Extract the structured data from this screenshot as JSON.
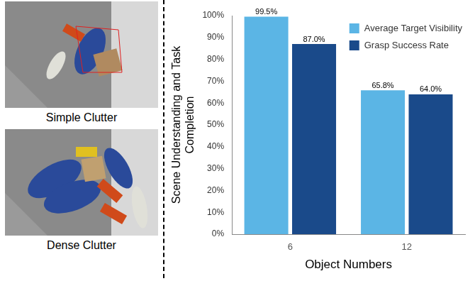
{
  "images": [
    {
      "caption": "Simple Clutter"
    },
    {
      "caption": "Dense Clutter"
    }
  ],
  "chart_data": {
    "type": "bar",
    "categories": [
      "6",
      "12"
    ],
    "series": [
      {
        "name": "Average Target Visibility",
        "color": "#5bb5e5",
        "values": [
          99.5,
          65.8
        ],
        "value_labels": [
          "99.5%",
          "65.8%"
        ]
      },
      {
        "name": "Grasp Success Rate",
        "color": "#1a4a8a",
        "values": [
          87.0,
          64.0
        ],
        "value_labels": [
          "87.0%",
          "64.0%"
        ]
      }
    ],
    "x_label": "Object Numbers",
    "y_label": "Scene Understanding and Task Completion",
    "ylim": [
      0,
      100
    ],
    "yticks": [
      {
        "value": 0,
        "label": "0%"
      },
      {
        "value": 10,
        "label": "10%"
      },
      {
        "value": 20,
        "label": "20%"
      },
      {
        "value": 30,
        "label": "30%"
      },
      {
        "value": 40,
        "label": "40%"
      },
      {
        "value": 50,
        "label": "50%"
      },
      {
        "value": 60,
        "label": "60%"
      },
      {
        "value": 70,
        "label": "70%"
      },
      {
        "value": 80,
        "label": "80%"
      },
      {
        "value": 90,
        "label": "90%"
      },
      {
        "value": 100,
        "label": "100%"
      }
    ],
    "grid": false,
    "legend": "upper right",
    "data_labels": true
  }
}
